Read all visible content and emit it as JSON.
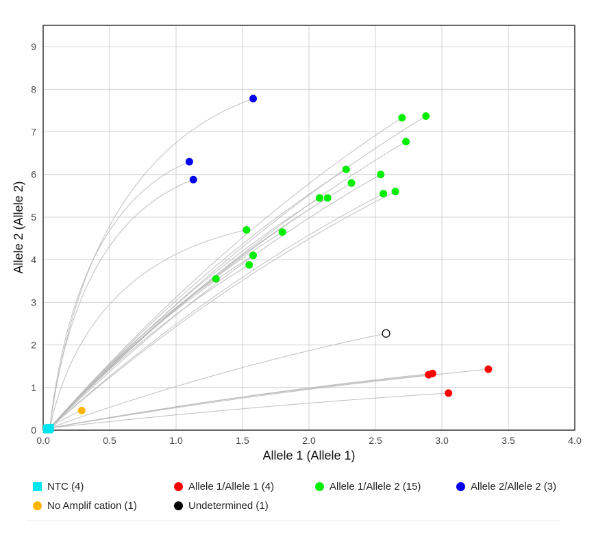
{
  "chart_data": {
    "type": "scatter",
    "xlabel": "Allele 1 (Allele 1)",
    "ylabel": "Allele 2 (Allele 2)",
    "xlim": [
      0,
      4.0
    ],
    "ylim": [
      0,
      9.5
    ],
    "xticks": [
      "0.0",
      "0.5",
      "1.0",
      "1.5",
      "2.0",
      "2.5",
      "3.0",
      "3.5",
      "4.0"
    ],
    "yticks": [
      "0",
      "1",
      "2",
      "3",
      "4",
      "5",
      "6",
      "7",
      "8",
      "9"
    ],
    "grid": true,
    "legend_position": "bottom",
    "series": [
      {
        "name": "NTC (4)",
        "color": "#00e5ee",
        "marker": "square",
        "points": [
          [
            0.03,
            0.03
          ],
          [
            0.04,
            0.04
          ],
          [
            0.05,
            0.05
          ],
          [
            0.04,
            0.02
          ]
        ]
      },
      {
        "name": "Allele 1/Allele 1 (4)",
        "color": "#ff0000",
        "marker": "circle",
        "points": [
          [
            2.9,
            1.3
          ],
          [
            2.93,
            1.33
          ],
          [
            3.05,
            0.87
          ],
          [
            3.35,
            1.43
          ]
        ]
      },
      {
        "name": "Allele 1/Allele 2 (15)",
        "color": "#00ee00",
        "marker": "circle",
        "points": [
          [
            1.3,
            3.55
          ],
          [
            1.53,
            4.7
          ],
          [
            1.55,
            3.88
          ],
          [
            1.58,
            4.1
          ],
          [
            1.8,
            4.65
          ],
          [
            2.08,
            5.45
          ],
          [
            2.14,
            5.45
          ],
          [
            2.28,
            6.12
          ],
          [
            2.32,
            5.8
          ],
          [
            2.54,
            6.0
          ],
          [
            2.56,
            5.55
          ],
          [
            2.65,
            5.6
          ],
          [
            2.7,
            7.33
          ],
          [
            2.73,
            6.77
          ],
          [
            2.88,
            7.37
          ]
        ]
      },
      {
        "name": "Allele 2/Allele 2 (3)",
        "color": "#0000ee",
        "marker": "circle",
        "points": [
          [
            1.1,
            6.3
          ],
          [
            1.13,
            5.88
          ],
          [
            1.58,
            7.78
          ]
        ]
      },
      {
        "name": "No Amplification (1)",
        "color": "#ffb400",
        "marker": "circle",
        "points": [
          [
            0.29,
            0.46
          ]
        ]
      },
      {
        "name": "Undetermined (1)",
        "color": "#000000",
        "marker": "open-circle",
        "points": [
          [
            2.58,
            2.27
          ]
        ]
      }
    ]
  },
  "legend": {
    "row1": [
      "NTC (4)",
      "Allele 1/Allele 1 (4)",
      "Allele 1/Allele 2 (15)",
      "Allele 2/Allele 2 (3)"
    ],
    "row2": [
      "No Amplif cation (1)",
      "Undetermined (1)"
    ]
  }
}
